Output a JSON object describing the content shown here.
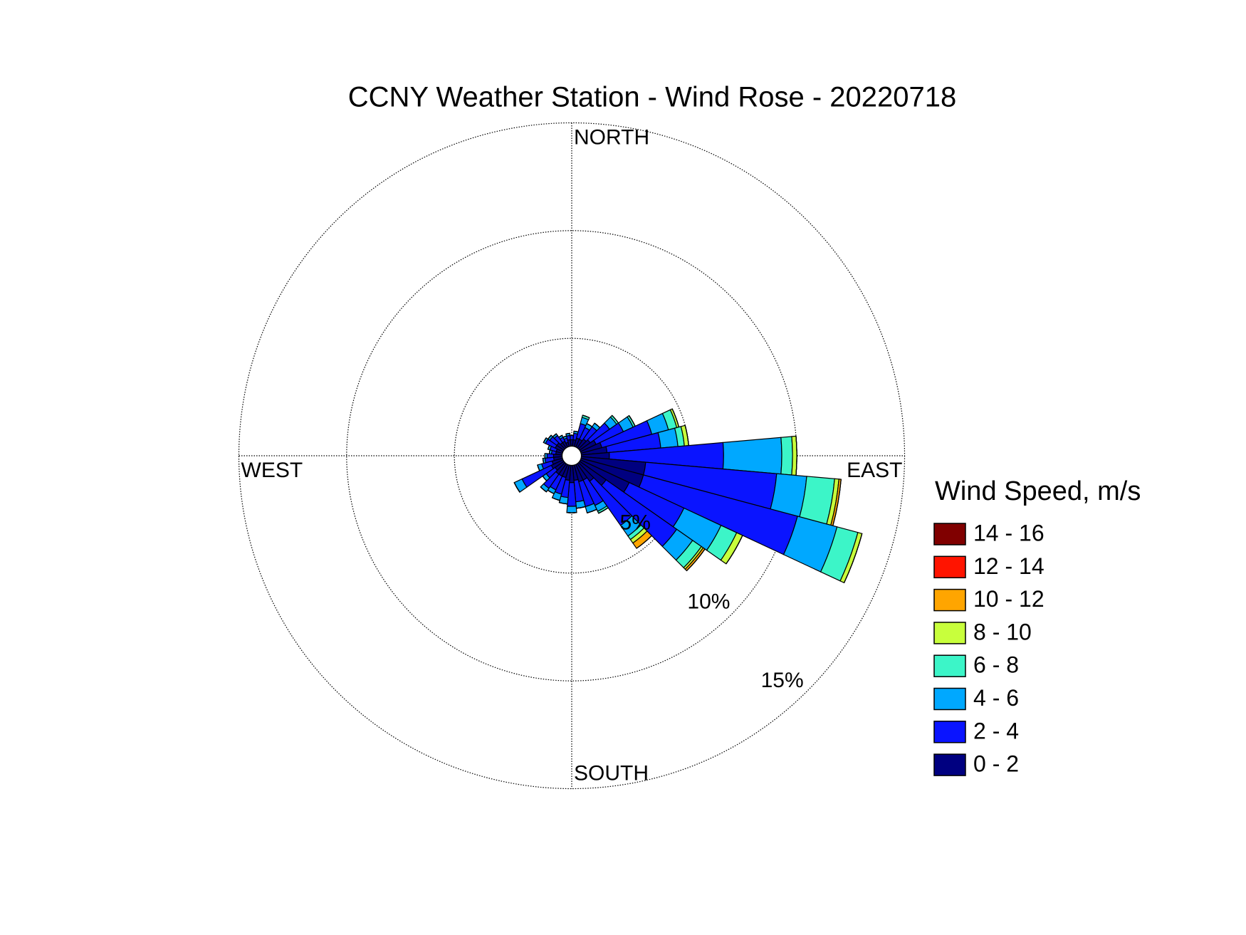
{
  "chart_data": {
    "type": "windrose",
    "title": "CCNY Weather Station - Wind Rose - 20220718",
    "direction_labels": [
      "NORTH",
      "EAST",
      "SOUTH",
      "WEST"
    ],
    "directions": [
      0,
      10,
      20,
      30,
      40,
      50,
      60,
      70,
      80,
      90,
      100,
      110,
      120,
      130,
      140,
      150,
      160,
      170,
      180,
      190,
      200,
      210,
      220,
      230,
      240,
      250,
      260,
      270,
      280,
      290,
      300,
      310,
      320,
      330,
      340,
      350
    ],
    "rlim": [
      0,
      15
    ],
    "rticks": [
      {
        "value": 5,
        "label": "5%"
      },
      {
        "value": 10,
        "label": "10%"
      },
      {
        "value": 15,
        "label": "15%"
      }
    ],
    "legend_title": "Wind Speed, m/s",
    "series": [
      {
        "name": "0 - 2",
        "color": "#000080",
        "values": [
          0.3,
          0.3,
          0.4,
          0.4,
          0.5,
          0.6,
          0.8,
          1.0,
          1.2,
          1.3,
          3.0,
          3.0,
          2.5,
          1.5,
          1.0,
          0.8,
          0.8,
          0.7,
          0.8,
          0.7,
          0.6,
          0.6,
          0.6,
          0.5,
          0.6,
          0.5,
          0.4,
          0.4,
          0.3,
          0.3,
          0.4,
          0.4,
          0.3,
          0.3,
          0.2,
          0.3
        ]
      },
      {
        "name": "2 - 4",
        "color": "#0a14ff",
        "values": [
          0.2,
          0.3,
          0.7,
          0.6,
          0.7,
          1.1,
          1.4,
          2.4,
          2.5,
          5.3,
          6.1,
          7.4,
          2.8,
          4.0,
          2.5,
          1.3,
          1.2,
          1.0,
          1.1,
          0.8,
          0.8,
          0.7,
          0.8,
          0.5,
          1.5,
          0.5,
          0.4,
          0.3,
          0.2,
          0.3,
          0.5,
          0.4,
          0.4,
          0.2,
          0.2,
          0.2
        ]
      },
      {
        "name": "4 - 6",
        "color": "#00a8ff",
        "values": [
          0,
          0.1,
          0.3,
          0.2,
          0.2,
          0.4,
          0.5,
          0.8,
          0.8,
          2.7,
          1.4,
          1.9,
          1.9,
          0.9,
          0.6,
          0.3,
          0.3,
          0.3,
          0.3,
          0.3,
          0.3,
          0.2,
          0.2,
          0.2,
          0.4,
          0.2,
          0.1,
          0.1,
          0.1,
          0.1,
          0.1,
          0.1,
          0.1,
          0.1,
          0.1,
          0.1
        ]
      },
      {
        "name": "6 - 8",
        "color": "#3cf5c8",
        "values": [
          0,
          0,
          0.1,
          0,
          0,
          0.1,
          0.1,
          0.4,
          0.3,
          0.5,
          1.3,
          1.0,
          0.8,
          0.5,
          0.2,
          0.1,
          0,
          0,
          0,
          0,
          0,
          0,
          0,
          0,
          0,
          0,
          0,
          0,
          0,
          0,
          0,
          0,
          0,
          0,
          0,
          0
        ]
      },
      {
        "name": "8 - 10",
        "color": "#c8ff3c",
        "values": [
          0,
          0,
          0,
          0,
          0,
          0,
          0,
          0.1,
          0.2,
          0.2,
          0.2,
          0.2,
          0.3,
          0.1,
          0.2,
          0,
          0,
          0,
          0,
          0,
          0,
          0,
          0,
          0,
          0,
          0,
          0,
          0,
          0,
          0,
          0,
          0,
          0,
          0,
          0,
          0
        ]
      },
      {
        "name": "10 - 12",
        "color": "#ffa500",
        "values": [
          0,
          0,
          0,
          0,
          0,
          0,
          0,
          0,
          0,
          0,
          0.1,
          0,
          0,
          0.1,
          0.3,
          0,
          0,
          0,
          0,
          0,
          0,
          0,
          0,
          0,
          0,
          0,
          0,
          0,
          0,
          0,
          0,
          0,
          0,
          0,
          0,
          0
        ]
      },
      {
        "name": "12 - 14",
        "color": "#ff1400",
        "values": [
          0,
          0,
          0,
          0,
          0,
          0,
          0,
          0,
          0,
          0,
          0,
          0,
          0,
          0,
          0,
          0,
          0,
          0,
          0,
          0,
          0,
          0,
          0,
          0,
          0,
          0,
          0,
          0,
          0,
          0,
          0,
          0,
          0,
          0,
          0,
          0
        ]
      },
      {
        "name": "14 - 16",
        "color": "#800000",
        "values": [
          0,
          0,
          0,
          0,
          0,
          0,
          0,
          0,
          0,
          0,
          0,
          0,
          0,
          0,
          0,
          0,
          0,
          0,
          0,
          0,
          0,
          0,
          0,
          0,
          0,
          0,
          0,
          0,
          0,
          0,
          0,
          0,
          0,
          0,
          0,
          0
        ]
      }
    ]
  }
}
